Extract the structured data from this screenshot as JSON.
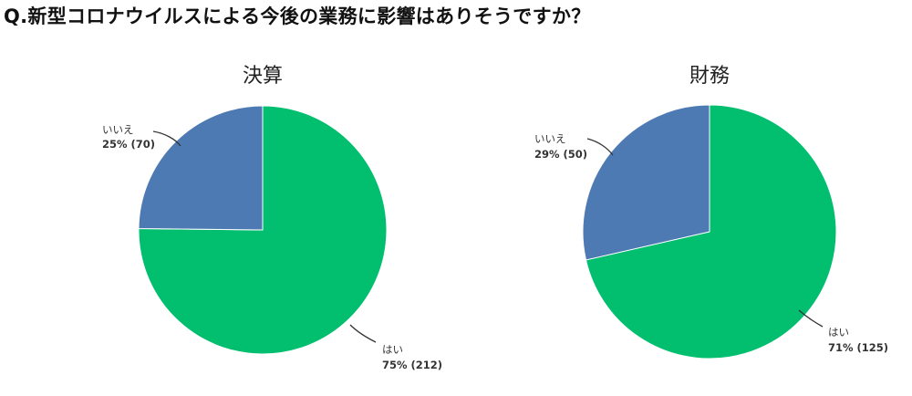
{
  "question": "Q.新型コロナウイルスによる今後の業務に影響はありそうですか？",
  "colors": {
    "yes": "#02bf6f",
    "no": "#4e7ab4"
  },
  "chart_data": [
    {
      "type": "pie",
      "title": "決算",
      "slices": [
        {
          "label": "いいえ",
          "value_text": "25% (70)",
          "percent": 25,
          "count": 70,
          "color": "#4e7ab4"
        },
        {
          "label": "はい",
          "value_text": "75% (212)",
          "percent": 75,
          "count": 212,
          "color": "#02bf6f"
        }
      ]
    },
    {
      "type": "pie",
      "title": "財務",
      "slices": [
        {
          "label": "いいえ",
          "value_text": "29% (50)",
          "percent": 29,
          "count": 50,
          "color": "#4e7ab4"
        },
        {
          "label": "はい",
          "value_text": "71% (125)",
          "percent": 71,
          "count": 125,
          "color": "#02bf6f"
        }
      ]
    }
  ]
}
